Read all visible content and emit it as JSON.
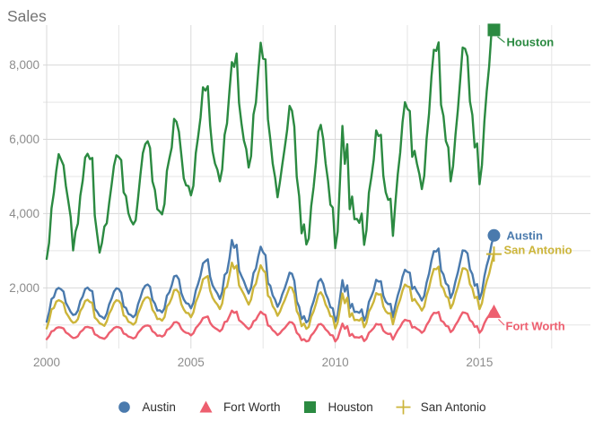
{
  "title": "Sales",
  "colors": {
    "austin": "#4a7aad",
    "fort_worth": "#ed5f6f",
    "houston": "#2b8a41",
    "san_antonio": "#ccb53a",
    "axis_text": "#8c8c8c",
    "title_text": "#737373",
    "legend_text": "#2e2e2e",
    "grid_major": "#d8d8d8",
    "grid_minor": "#e5e5e5"
  },
  "chart_data": {
    "type": "line",
    "title": "Sales",
    "x_start_year": 2000,
    "x_interval": "monthly",
    "x_axis": {
      "ticks": [
        2000,
        2005,
        2010,
        2015
      ],
      "labels": [
        "2000",
        "2005",
        "2010",
        "2015"
      ],
      "minor_gridlines": [
        2002.5,
        2007.5,
        2012.5,
        2017.5
      ],
      "xlim": [
        2000,
        2018.8
      ]
    },
    "y_axis": {
      "ticks": [
        2000,
        4000,
        6000,
        8000
      ],
      "labels": [
        "2,000",
        "4,000",
        "6,000",
        "8,000"
      ],
      "minor_gridlines": [
        1000,
        3000,
        5000,
        7000
      ],
      "ylim": [
        370,
        9400
      ]
    },
    "legend_position": "bottom",
    "grid": true,
    "series": [
      {
        "name": "Austin",
        "marker": "circle",
        "color": "#4a7aad",
        "end_label": "Austin",
        "values": [
          1090,
          1340,
          1700,
          1750,
          1950,
          2000,
          1960,
          1900,
          1600,
          1480,
          1350,
          1270,
          1290,
          1390,
          1650,
          1770,
          1970,
          2010,
          1940,
          1910,
          1440,
          1360,
          1250,
          1220,
          1170,
          1310,
          1560,
          1710,
          1900,
          1990,
          1970,
          1870,
          1500,
          1460,
          1300,
          1270,
          1210,
          1280,
          1560,
          1740,
          1950,
          2060,
          2090,
          2030,
          1680,
          1580,
          1390,
          1400,
          1340,
          1450,
          1790,
          1880,
          2070,
          2310,
          2330,
          2230,
          1860,
          1690,
          1590,
          1570,
          1450,
          1600,
          1930,
          2110,
          2340,
          2660,
          2720,
          2770,
          2300,
          2070,
          1950,
          1850,
          1700,
          1890,
          2350,
          2420,
          2790,
          3290,
          3080,
          3160,
          2470,
          2320,
          2180,
          2010,
          1850,
          2010,
          2400,
          2520,
          2840,
          3110,
          2960,
          2880,
          2130,
          2060,
          1800,
          1680,
          1490,
          1620,
          1830,
          1990,
          2190,
          2410,
          2380,
          2190,
          1640,
          1490,
          1160,
          1240,
          1070,
          1130,
          1450,
          1640,
          1880,
          2170,
          2240,
          2110,
          1850,
          1700,
          1480,
          1450,
          1090,
          1270,
          1740,
          2210,
          1900,
          2070,
          1450,
          1570,
          1350,
          1360,
          1330,
          1420,
          1120,
          1260,
          1620,
          1770,
          1940,
          2220,
          2170,
          2180,
          1790,
          1630,
          1560,
          1570,
          1210,
          1530,
          1800,
          2010,
          2300,
          2490,
          2430,
          2410,
          1970,
          2030,
          1900,
          1800,
          1660,
          1790,
          2140,
          2380,
          2730,
          2990,
          2980,
          3060,
          2470,
          2360,
          2120,
          2060,
          1730,
          1880,
          2180,
          2420,
          2720,
          3010,
          3000,
          2930,
          2500,
          2370,
          2060,
          2100,
          1700,
          1890,
          2310,
          2600,
          2830,
          3180,
          3413
        ]
      },
      {
        "name": "Fort Worth",
        "marker": "triangle",
        "color": "#ed5f6f",
        "end_label": "Fort Worth",
        "values": [
          620,
          700,
          830,
          850,
          920,
          940,
          930,
          910,
          800,
          760,
          700,
          650,
          660,
          700,
          810,
          860,
          940,
          950,
          930,
          920,
          750,
          720,
          670,
          650,
          630,
          690,
          790,
          850,
          920,
          950,
          940,
          910,
          770,
          750,
          690,
          670,
          640,
          670,
          790,
          860,
          940,
          980,
          990,
          970,
          830,
          790,
          710,
          720,
          690,
          730,
          870,
          900,
          970,
          1070,
          1080,
          1040,
          900,
          830,
          790,
          780,
          720,
          780,
          920,
          990,
          1070,
          1190,
          1210,
          1230,
          1060,
          970,
          920,
          880,
          830,
          890,
          1080,
          1100,
          1240,
          1390,
          1330,
          1360,
          1130,
          1080,
          1020,
          950,
          890,
          950,
          1100,
          1140,
          1260,
          1360,
          1300,
          1270,
          990,
          960,
          860,
          810,
          730,
          780,
          860,
          920,
          1000,
          1080,
          1070,
          1000,
          790,
          730,
          590,
          620,
          560,
          580,
          720,
          790,
          890,
          1010,
          1030,
          980,
          880,
          820,
          730,
          720,
          560,
          640,
          850,
          1040,
          900,
          970,
          710,
          760,
          670,
          670,
          660,
          700,
          570,
          630,
          790,
          850,
          920,
          1030,
          1010,
          1020,
          850,
          790,
          760,
          770,
          610,
          740,
          860,
          950,
          1070,
          1140,
          1120,
          1110,
          930,
          950,
          900,
          860,
          790,
          850,
          1000,
          1100,
          1240,
          1330,
          1320,
          1350,
          1120,
          1080,
          980,
          960,
          810,
          870,
          1000,
          1100,
          1230,
          1340,
          1330,
          1300,
          1130,
          1080,
          950,
          970,
          790,
          870,
          1050,
          1170,
          1260,
          1390,
          1349
        ]
      },
      {
        "name": "Houston",
        "marker": "square",
        "color": "#2b8a41",
        "end_label": "Houston",
        "values": [
          2780,
          3210,
          4140,
          4550,
          5150,
          5600,
          5450,
          5300,
          4750,
          4340,
          3900,
          3010,
          3520,
          3730,
          4480,
          4890,
          5510,
          5610,
          5470,
          5500,
          3950,
          3440,
          2950,
          3210,
          3650,
          3740,
          4290,
          4780,
          5290,
          5570,
          5520,
          5440,
          4570,
          4470,
          4010,
          3820,
          3710,
          3820,
          4400,
          5050,
          5630,
          5870,
          5950,
          5770,
          4870,
          4640,
          4120,
          4060,
          3980,
          4260,
          5150,
          5480,
          5780,
          6550,
          6470,
          6200,
          5580,
          4950,
          4760,
          4740,
          4490,
          4750,
          5630,
          6070,
          6590,
          7400,
          7310,
          7430,
          6380,
          5680,
          5350,
          5180,
          4870,
          5190,
          6120,
          6430,
          7290,
          8080,
          7950,
          8310,
          6980,
          6430,
          5970,
          5740,
          5240,
          5550,
          6670,
          6990,
          7820,
          8600,
          8170,
          8150,
          6540,
          6010,
          5350,
          4970,
          4440,
          4860,
          5320,
          5770,
          6250,
          6900,
          6770,
          6340,
          4990,
          4470,
          3470,
          3710,
          3170,
          3330,
          4200,
          4710,
          5380,
          6210,
          6390,
          6010,
          5350,
          4880,
          4240,
          4160,
          3070,
          3520,
          4940,
          6360,
          5340,
          5870,
          4120,
          4460,
          3850,
          3860,
          3750,
          4000,
          3160,
          3550,
          4560,
          4970,
          5450,
          6240,
          6090,
          6120,
          5020,
          4570,
          4370,
          4400,
          3400,
          4280,
          5060,
          5640,
          6460,
          7000,
          6820,
          6760,
          5530,
          5690,
          5340,
          5060,
          4660,
          5020,
          6010,
          6680,
          7680,
          8410,
          8380,
          8610,
          6930,
          6630,
          5950,
          5780,
          4870,
          5280,
          6120,
          6800,
          7640,
          8470,
          8440,
          8230,
          7020,
          6660,
          5780,
          5890,
          4790,
          5310,
          6480,
          7290,
          7960,
          8920,
          8945
        ]
      },
      {
        "name": "San Antonio",
        "marker": "plus",
        "color": "#ccb53a",
        "end_label": "San Antonio",
        "values": [
          910,
          1120,
          1420,
          1460,
          1630,
          1670,
          1640,
          1590,
          1340,
          1240,
          1130,
          1060,
          1080,
          1160,
          1380,
          1480,
          1650,
          1680,
          1620,
          1600,
          1200,
          1140,
          1050,
          1020,
          980,
          1100,
          1310,
          1430,
          1590,
          1670,
          1650,
          1570,
          1260,
          1220,
          1090,
          1060,
          1010,
          1070,
          1310,
          1460,
          1630,
          1730,
          1750,
          1700,
          1410,
          1320,
          1160,
          1170,
          1120,
          1210,
          1500,
          1580,
          1730,
          1940,
          1950,
          1870,
          1560,
          1420,
          1330,
          1320,
          1210,
          1340,
          1620,
          1770,
          1960,
          2230,
          2280,
          2320,
          1930,
          1740,
          1630,
          1550,
          1430,
          1580,
          1970,
          2030,
          2340,
          2680,
          2520,
          2600,
          2070,
          1950,
          1830,
          1690,
          1550,
          1690,
          2010,
          2110,
          2380,
          2610,
          2480,
          2410,
          1790,
          1730,
          1510,
          1410,
          1250,
          1360,
          1530,
          1670,
          1840,
          2020,
          2000,
          1840,
          1380,
          1250,
          970,
          1040,
          900,
          950,
          1220,
          1370,
          1580,
          1820,
          1880,
          1770,
          1550,
          1430,
          1240,
          1220,
          910,
          1070,
          1460,
          1850,
          1590,
          1740,
          1220,
          1320,
          1130,
          1140,
          1120,
          1190,
          940,
          1060,
          1360,
          1480,
          1630,
          1860,
          1820,
          1830,
          1500,
          1370,
          1310,
          1320,
          1020,
          1280,
          1510,
          1690,
          1930,
          2090,
          2040,
          2020,
          1650,
          1700,
          1600,
          1510,
          1390,
          1500,
          1800,
          2000,
          2290,
          2510,
          2500,
          2570,
          2070,
          1980,
          1780,
          1730,
          1450,
          1580,
          1830,
          2030,
          2280,
          2530,
          2520,
          2460,
          2100,
          1990,
          1730,
          1760,
          1430,
          1590,
          1940,
          2180,
          2380,
          2670,
          2910
        ]
      }
    ]
  },
  "legend": {
    "items": [
      {
        "label": "Austin",
        "marker": "circle",
        "color": "#4a7aad"
      },
      {
        "label": "Fort Worth",
        "marker": "triangle",
        "color": "#ed5f6f"
      },
      {
        "label": "Houston",
        "marker": "square",
        "color": "#2b8a41"
      },
      {
        "label": "San Antonio",
        "marker": "plus",
        "color": "#ccb53a"
      }
    ]
  }
}
